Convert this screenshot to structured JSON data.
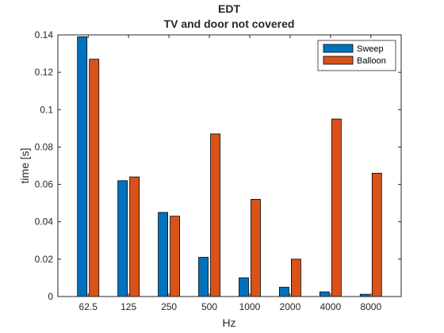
{
  "chart_data": {
    "type": "bar",
    "title": "EDT",
    "subtitle": "TV and door not covered",
    "xlabel": "Hz",
    "ylabel": "time [s]",
    "categories": [
      "62.5",
      "125",
      "250",
      "500",
      "1000",
      "2000",
      "4000",
      "8000"
    ],
    "ylim": [
      0,
      0.14
    ],
    "yticks": [
      0,
      0.02,
      0.04,
      0.06,
      0.08,
      0.1,
      0.12,
      0.14
    ],
    "ytick_labels": [
      "0",
      "0.02",
      "0.04",
      "0.06",
      "0.08",
      "0.1",
      "0.12",
      "0.14"
    ],
    "grid": false,
    "legend_position": "top-right",
    "series": [
      {
        "name": "Sweep",
        "color": "#0072BD",
        "values": [
          0.139,
          0.062,
          0.045,
          0.021,
          0.01,
          0.005,
          0.0025,
          0.0012
        ]
      },
      {
        "name": "Balloon",
        "color": "#D95319",
        "values": [
          0.127,
          0.064,
          0.043,
          0.087,
          0.052,
          0.02,
          0.095,
          0.066
        ]
      }
    ]
  }
}
